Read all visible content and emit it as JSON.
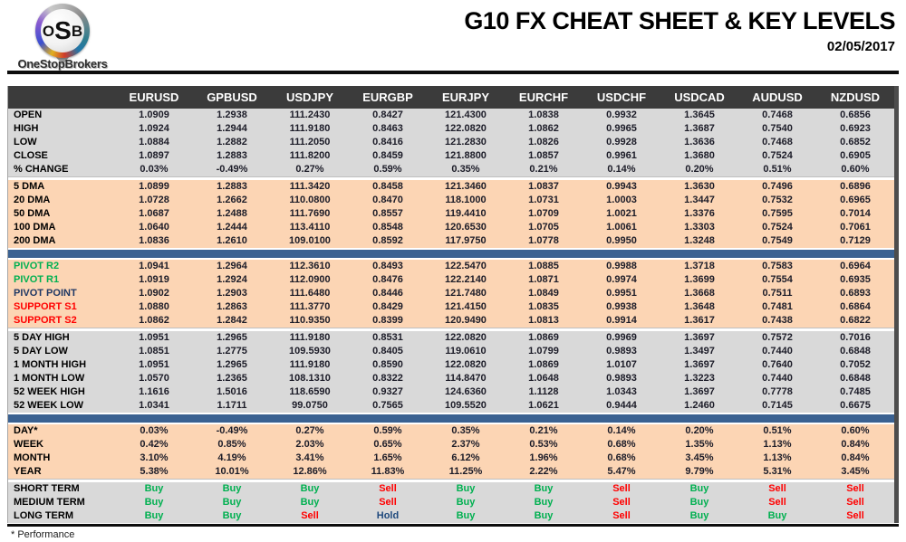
{
  "header": {
    "logo": {
      "l1": "O",
      "l2": "S",
      "l3": "B",
      "brand": "OneStopBrokers"
    },
    "title": "G10 FX CHEAT SHEET & KEY LEVELS",
    "date": "02/05/2017"
  },
  "colors": {
    "header_bar": "#3b3b3b",
    "gray_band": "#d9d9d9",
    "peach_band": "#fcd5b4",
    "blue_divider": "#3a6191",
    "buy_green": "#00b050",
    "sell_red": "#ff0000",
    "hold_navy": "#1f497d"
  },
  "table": {
    "columns": [
      "EURUSD",
      "GPBUSD",
      "USDJPY",
      "EURGBP",
      "EURJPY",
      "EURCHF",
      "USDCHF",
      "USDCAD",
      "AUDUSD",
      "NZDUSD"
    ],
    "sections": [
      {
        "name": "ohlc",
        "theme": "gray",
        "spacer_before": "none",
        "signal": false,
        "rows": [
          {
            "label": "OPEN",
            "values": [
              "1.0909",
              "1.2938",
              "111.2430",
              "0.8427",
              "121.4300",
              "1.0838",
              "0.9932",
              "1.3645",
              "0.7468",
              "0.6856"
            ]
          },
          {
            "label": "HIGH",
            "values": [
              "1.0924",
              "1.2944",
              "111.9180",
              "0.8463",
              "122.0820",
              "1.0862",
              "0.9965",
              "1.3687",
              "0.7540",
              "0.6923"
            ]
          },
          {
            "label": "LOW",
            "values": [
              "1.0884",
              "1.2882",
              "111.2050",
              "0.8416",
              "121.2830",
              "1.0826",
              "0.9928",
              "1.3636",
              "0.7468",
              "0.6852"
            ]
          },
          {
            "label": "CLOSE",
            "values": [
              "1.0897",
              "1.2883",
              "111.8200",
              "0.8459",
              "121.8800",
              "1.0857",
              "0.9961",
              "1.3680",
              "0.7524",
              "0.6905"
            ]
          },
          {
            "label": "% CHANGE",
            "values": [
              "0.03%",
              "-0.49%",
              "0.27%",
              "0.59%",
              "0.35%",
              "0.21%",
              "0.14%",
              "0.20%",
              "0.51%",
              "0.60%"
            ]
          }
        ]
      },
      {
        "name": "moving-averages",
        "theme": "peach",
        "spacer_before": "gap",
        "signal": false,
        "rows": [
          {
            "label": "5 DMA",
            "values": [
              "1.0899",
              "1.2883",
              "111.3420",
              "0.8458",
              "121.3460",
              "1.0837",
              "0.9943",
              "1.3630",
              "0.7496",
              "0.6896"
            ]
          },
          {
            "label": "20 DMA",
            "values": [
              "1.0728",
              "1.2662",
              "110.0800",
              "0.8470",
              "118.1000",
              "1.0731",
              "1.0003",
              "1.3447",
              "0.7532",
              "0.6965"
            ]
          },
          {
            "label": "50 DMA",
            "values": [
              "1.0687",
              "1.2488",
              "111.7690",
              "0.8557",
              "119.4410",
              "1.0709",
              "1.0021",
              "1.3376",
              "0.7595",
              "0.7014"
            ]
          },
          {
            "label": "100 DMA",
            "values": [
              "1.0640",
              "1.2444",
              "113.4110",
              "0.8548",
              "120.6530",
              "1.0705",
              "1.0061",
              "1.3303",
              "0.7524",
              "0.7061"
            ]
          },
          {
            "label": "200 DMA",
            "values": [
              "1.0836",
              "1.2610",
              "109.0100",
              "0.8592",
              "117.9750",
              "1.0778",
              "0.9950",
              "1.3248",
              "0.7549",
              "0.7129"
            ]
          }
        ]
      },
      {
        "name": "pivots",
        "theme": "peach",
        "spacer_before": "blue",
        "signal": false,
        "rows": [
          {
            "label": "PIVOT R2",
            "label_color": "green",
            "values": [
              "1.0941",
              "1.2964",
              "112.3610",
              "0.8493",
              "122.5470",
              "1.0885",
              "0.9988",
              "1.3718",
              "0.7583",
              "0.6964"
            ]
          },
          {
            "label": "PIVOT R1",
            "label_color": "green",
            "values": [
              "1.0919",
              "1.2924",
              "112.0900",
              "0.8476",
              "122.2140",
              "1.0871",
              "0.9974",
              "1.3699",
              "0.7554",
              "0.6935"
            ]
          },
          {
            "label": "PIVOT POINT",
            "label_color": "navy",
            "values": [
              "1.0902",
              "1.2903",
              "111.6480",
              "0.8446",
              "121.7480",
              "1.0849",
              "0.9951",
              "1.3668",
              "0.7511",
              "0.6893"
            ]
          },
          {
            "label": "SUPPORT S1",
            "label_color": "red",
            "values": [
              "1.0880",
              "1.2863",
              "111.3770",
              "0.8429",
              "121.4150",
              "1.0835",
              "0.9938",
              "1.3648",
              "0.7481",
              "0.6864"
            ]
          },
          {
            "label": "SUPPORT S2",
            "label_color": "red",
            "values": [
              "1.0862",
              "1.2842",
              "110.9350",
              "0.8399",
              "120.9490",
              "1.0813",
              "0.9914",
              "1.3617",
              "0.7438",
              "0.6822"
            ]
          }
        ]
      },
      {
        "name": "ranges",
        "theme": "gray",
        "spacer_before": "gap",
        "signal": false,
        "rows": [
          {
            "label": "5 DAY HIGH",
            "values": [
              "1.0951",
              "1.2965",
              "111.9180",
              "0.8531",
              "122.0820",
              "1.0869",
              "0.9969",
              "1.3697",
              "0.7572",
              "0.7016"
            ]
          },
          {
            "label": "5 DAY LOW",
            "values": [
              "1.0851",
              "1.2775",
              "109.5930",
              "0.8405",
              "119.0610",
              "1.0799",
              "0.9893",
              "1.3497",
              "0.7440",
              "0.6848"
            ]
          },
          {
            "label": "1 MONTH HIGH",
            "values": [
              "1.0951",
              "1.2965",
              "111.9180",
              "0.8590",
              "122.0820",
              "1.0869",
              "1.0107",
              "1.3697",
              "0.7640",
              "0.7052"
            ]
          },
          {
            "label": "1 MONTH LOW",
            "values": [
              "1.0570",
              "1.2365",
              "108.1310",
              "0.8322",
              "114.8470",
              "1.0648",
              "0.9893",
              "1.3223",
              "0.7440",
              "0.6848"
            ]
          },
          {
            "label": "52 WEEK HIGH",
            "values": [
              "1.1616",
              "1.5016",
              "118.6590",
              "0.9327",
              "124.6360",
              "1.1128",
              "1.0343",
              "1.3697",
              "0.7778",
              "0.7485"
            ]
          },
          {
            "label": "52 WEEK LOW",
            "values": [
              "1.0341",
              "1.1711",
              "99.0750",
              "0.7565",
              "109.5520",
              "1.0621",
              "0.9444",
              "1.2460",
              "0.7145",
              "0.6675"
            ]
          }
        ]
      },
      {
        "name": "performance",
        "theme": "peach",
        "spacer_before": "blue",
        "signal": false,
        "rows": [
          {
            "label": "DAY*",
            "values": [
              "0.03%",
              "-0.49%",
              "0.27%",
              "0.59%",
              "0.35%",
              "0.21%",
              "0.14%",
              "0.20%",
              "0.51%",
              "0.60%"
            ]
          },
          {
            "label": "WEEK",
            "values": [
              "0.42%",
              "0.85%",
              "2.03%",
              "0.65%",
              "2.37%",
              "0.53%",
              "0.68%",
              "1.35%",
              "1.13%",
              "0.84%"
            ]
          },
          {
            "label": "MONTH",
            "values": [
              "3.10%",
              "4.19%",
              "3.41%",
              "1.65%",
              "6.12%",
              "1.96%",
              "0.68%",
              "3.45%",
              "1.13%",
              "0.84%"
            ]
          },
          {
            "label": "YEAR",
            "values": [
              "5.38%",
              "10.01%",
              "12.86%",
              "11.83%",
              "11.25%",
              "2.22%",
              "5.47%",
              "9.79%",
              "5.31%",
              "3.45%"
            ]
          }
        ]
      },
      {
        "name": "signals",
        "theme": "gray",
        "spacer_before": "gap",
        "signal": true,
        "rows": [
          {
            "label": "SHORT TERM",
            "values": [
              "Buy",
              "Buy",
              "Buy",
              "Sell",
              "Buy",
              "Buy",
              "Sell",
              "Buy",
              "Sell",
              "Sell"
            ]
          },
          {
            "label": "MEDIUM TERM",
            "values": [
              "Buy",
              "Buy",
              "Buy",
              "Sell",
              "Buy",
              "Buy",
              "Sell",
              "Buy",
              "Sell",
              "Sell"
            ]
          },
          {
            "label": "LONG TERM",
            "values": [
              "Buy",
              "Buy",
              "Sell",
              "Hold",
              "Buy",
              "Buy",
              "Sell",
              "Buy",
              "Buy",
              "Sell"
            ]
          }
        ]
      }
    ]
  },
  "footer": {
    "note": "* Performance"
  }
}
